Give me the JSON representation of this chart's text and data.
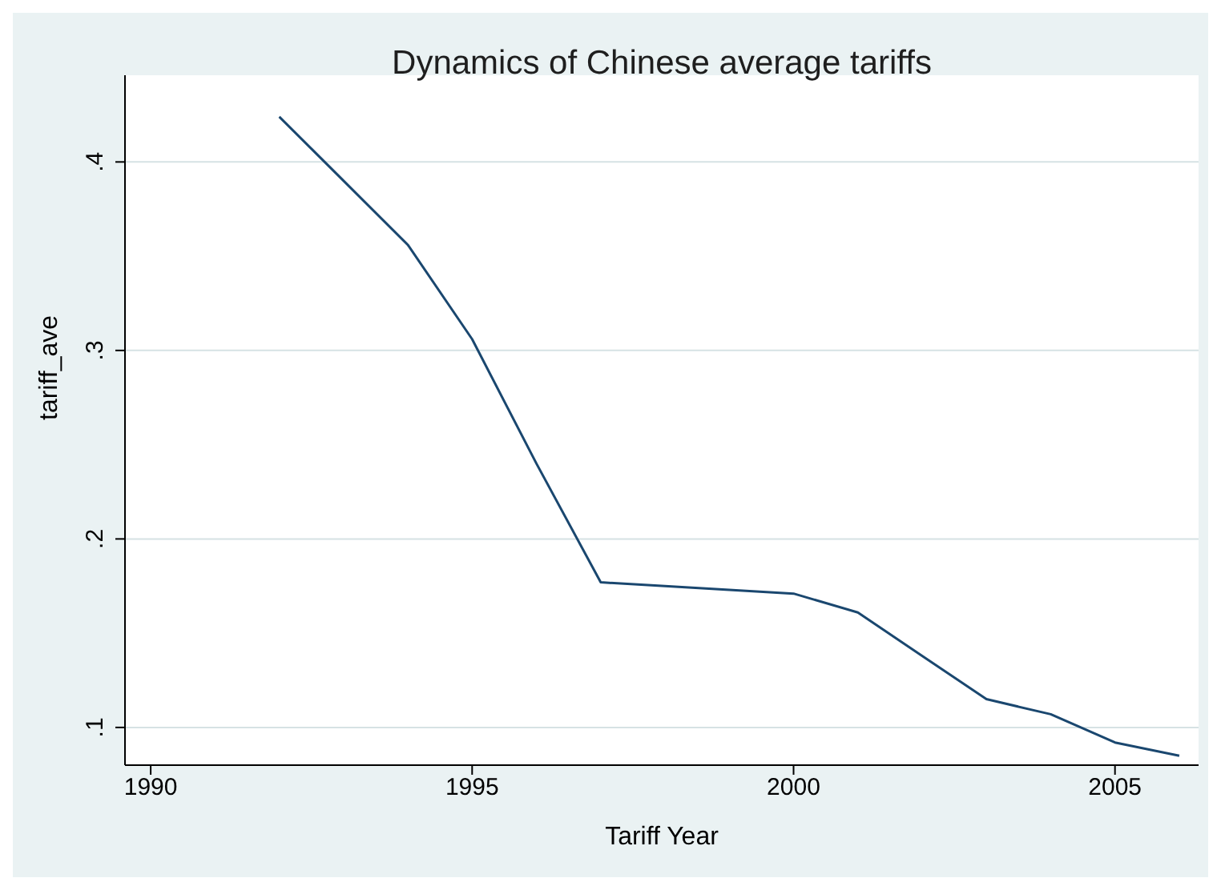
{
  "chart_data": {
    "type": "line",
    "title": "Dynamics of Chinese average tariffs",
    "xlabel": "Tariff Year",
    "ylabel": "tariff_ave",
    "x": [
      1992,
      1993,
      1994,
      1995,
      1996,
      1997,
      1998,
      1999,
      2000,
      2001,
      2002,
      2003,
      2004,
      2005,
      2006
    ],
    "series": [
      {
        "color": "#1a476f",
        "values": [
          0.424,
          0.39,
          0.356,
          0.306,
          0.24,
          0.177,
          0.175,
          0.173,
          0.171,
          0.161,
          0.138,
          0.115,
          0.107,
          0.092,
          0.085
        ]
      }
    ],
    "xlim": [
      1989.6,
      2006.3
    ],
    "xticks": [
      1990,
      1995,
      2000,
      2005
    ],
    "ylim": [
      0.08,
      0.446
    ],
    "yticks": [
      {
        "value": 0.1,
        "label": ".1"
      },
      {
        "value": 0.2,
        "label": ".2"
      },
      {
        "value": 0.3,
        "label": ".3"
      },
      {
        "value": 0.4,
        "label": ".4"
      }
    ],
    "grid": "y",
    "legend": false,
    "marker": "none",
    "line_style": "solid"
  }
}
